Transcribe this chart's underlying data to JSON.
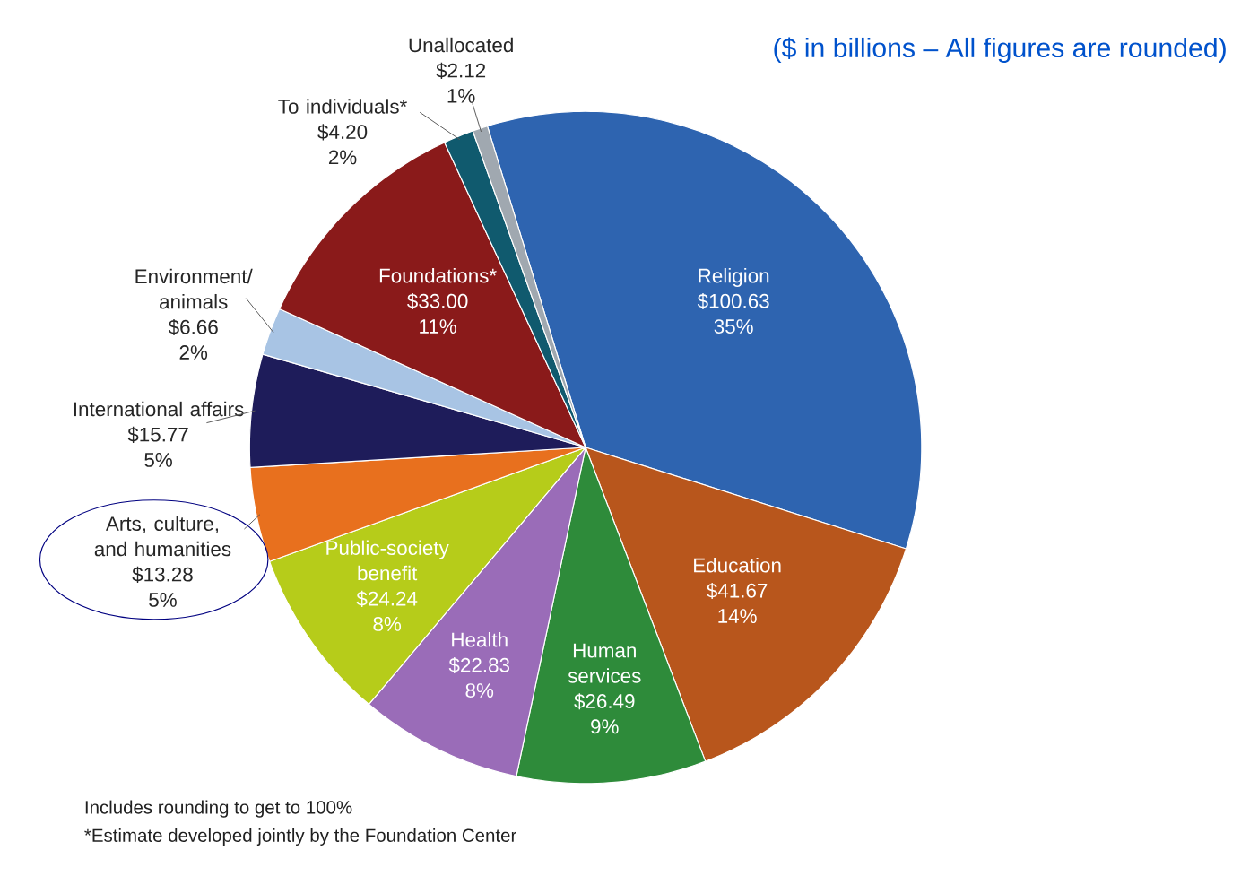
{
  "chart_data": {
    "type": "pie",
    "categories": [
      "Religion",
      "Education",
      "Human services",
      "Health",
      "Public-society benefit",
      "Arts, culture, and humanities",
      "International affairs",
      "Environment/ animals",
      "Foundations*",
      "To individuals*",
      "Unallocated"
    ],
    "values": [
      100.63,
      41.67,
      26.49,
      22.83,
      24.24,
      13.28,
      15.77,
      6.66,
      33.0,
      4.2,
      2.12
    ],
    "value_labels": [
      "$100.63",
      "$41.67",
      "$26.49",
      "$22.83",
      "$24.24",
      "$13.28",
      "$15.77",
      "$6.66",
      "$33.00",
      "$4.20",
      "$2.12"
    ],
    "colors": [
      "#2e64b0",
      "#b8561c",
      "#2e8b3a",
      "#9a6cb8",
      "#b6cc1a",
      "#e8701e",
      "#1e1c5a",
      "#a8c4e4",
      "#8a1a1a",
      "#105a6e",
      "#a0a8b0"
    ],
    "annotations": [
      "35%",
      "14%",
      "9%",
      "8%",
      "8%",
      "5%",
      "5%",
      "2%",
      "11%",
      "2%",
      "1%",
      "($ in billions – All figures are rounded)",
      "Includes rounding to get to 100%",
      "*Estimate developed jointly by the Foundation Center"
    ],
    "legend": false
  }
}
